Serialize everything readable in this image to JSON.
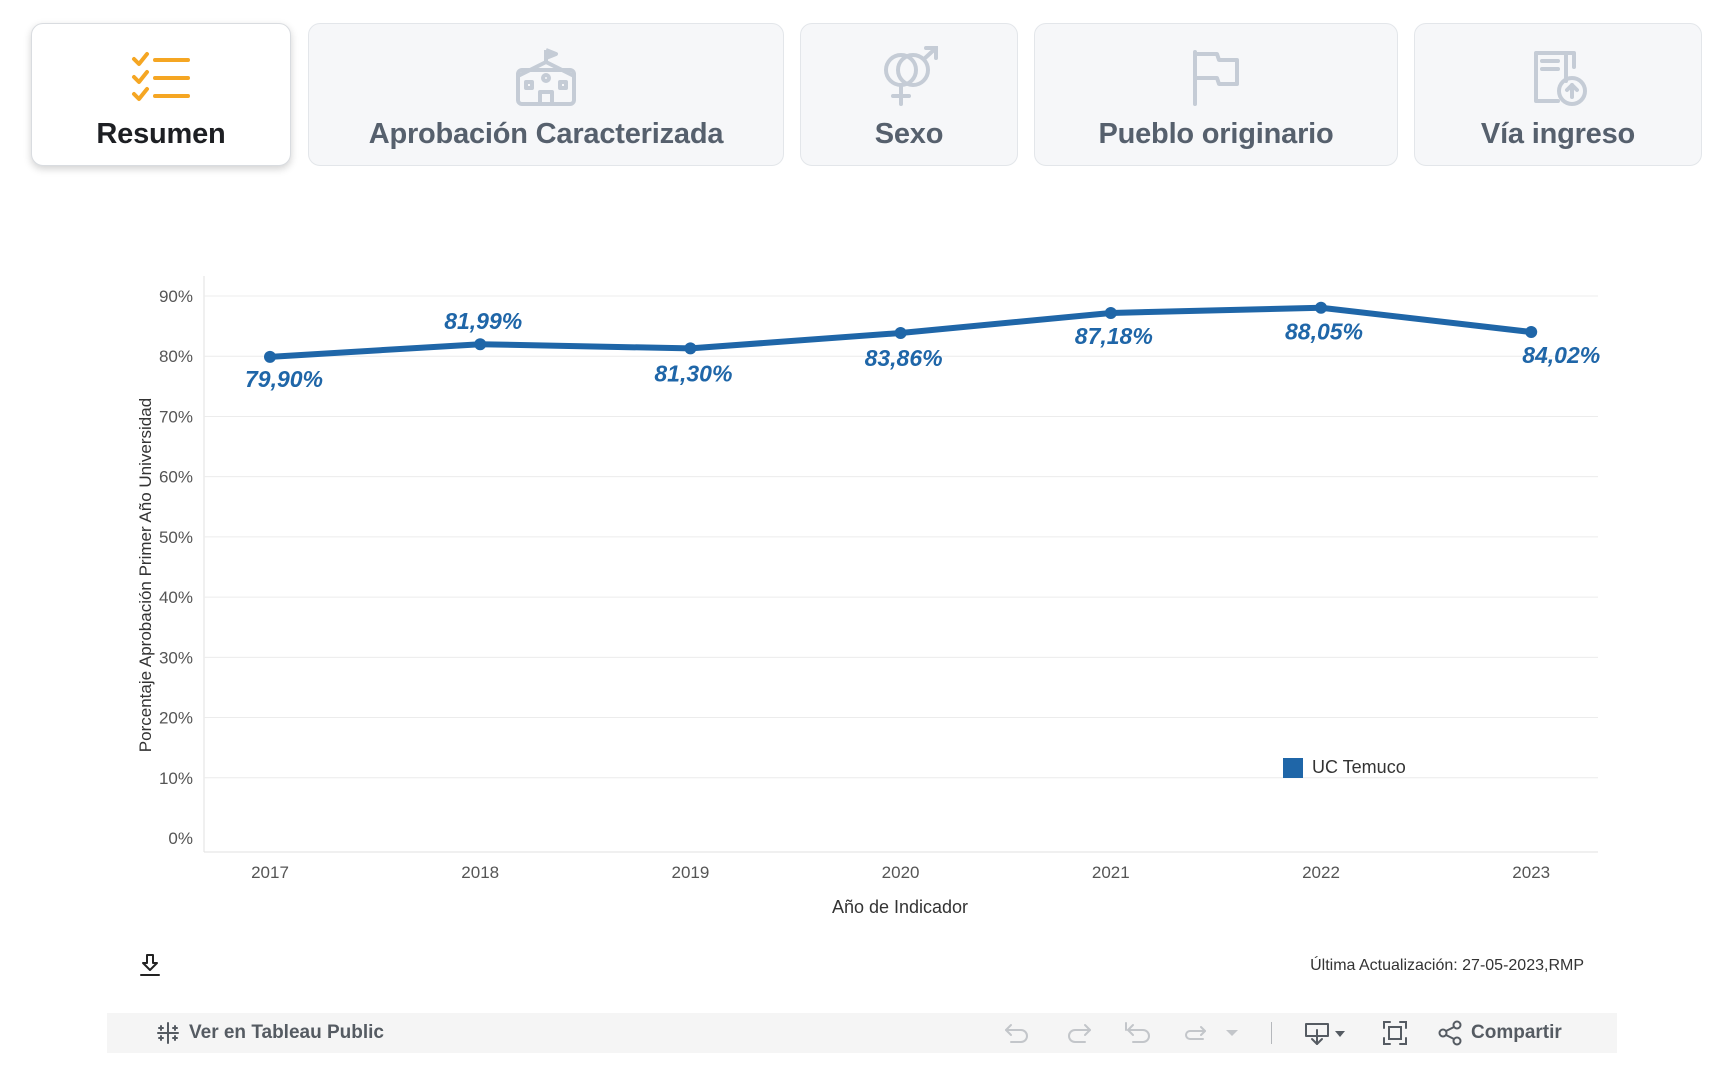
{
  "tabs": [
    {
      "label": "Resumen",
      "icon": "checklist-icon",
      "active": true
    },
    {
      "label": "Aprobación Caracterizada",
      "icon": "school-icon",
      "active": false
    },
    {
      "label": "Sexo",
      "icon": "gender-icon",
      "active": false
    },
    {
      "label": "Pueblo originario",
      "icon": "flag-icon",
      "active": false
    },
    {
      "label": "Vía ingreso",
      "icon": "document-upload-icon",
      "active": false
    }
  ],
  "colors": {
    "series": "#1f66a8",
    "accent": "#f5a623",
    "tab_text": "#56606d"
  },
  "chart_data": {
    "type": "line",
    "title": "",
    "xlabel": "Año de Indicador",
    "ylabel": "Porcentaje Aprobación Primer Año Universidad",
    "ylim": [
      0,
      90
    ],
    "yticks": [
      "0%",
      "10%",
      "20%",
      "30%",
      "40%",
      "50%",
      "60%",
      "70%",
      "80%",
      "90%"
    ],
    "grid": true,
    "categories": [
      "2017",
      "2018",
      "2019",
      "2020",
      "2021",
      "2022",
      "2023"
    ],
    "series": [
      {
        "name": "UC Temuco",
        "values": [
          79.9,
          81.99,
          81.3,
          83.86,
          87.18,
          88.05,
          84.02
        ],
        "labels": [
          "79,90%",
          "81,99%",
          "81,30%",
          "83,86%",
          "87,18%",
          "88,05%",
          "84,02%"
        ]
      }
    ],
    "legend_position": "bottom-right"
  },
  "legend": {
    "label": "UC Temuco"
  },
  "footer": {
    "updated": "Última Actualización: 27-05-2023,RMP"
  },
  "toolbar": {
    "view_label": "Ver en Tableau Public",
    "share_label": "Compartir"
  }
}
